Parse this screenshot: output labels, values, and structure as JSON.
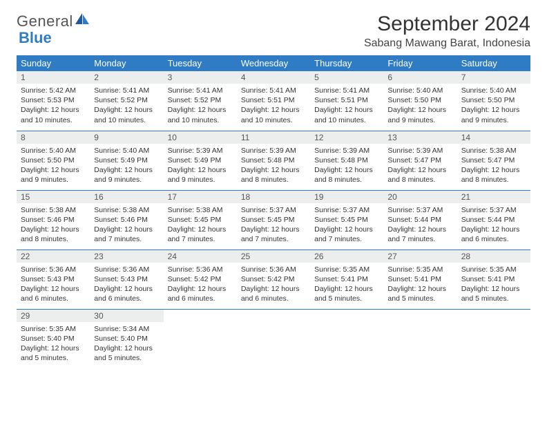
{
  "logo": {
    "text1": "General",
    "text2": "Blue"
  },
  "title": "September 2024",
  "location": "Sabang Mawang Barat, Indonesia",
  "colors": {
    "header_bg": "#2f7cc4",
    "header_text": "#ffffff",
    "daynum_bg": "#eceded",
    "border": "#2f7cc4",
    "page_bg": "#ffffff"
  },
  "weekdays": [
    "Sunday",
    "Monday",
    "Tuesday",
    "Wednesday",
    "Thursday",
    "Friday",
    "Saturday"
  ],
  "weeks": [
    [
      {
        "n": "1",
        "sr": "5:42 AM",
        "ss": "5:53 PM",
        "dl": "12 hours and 10 minutes."
      },
      {
        "n": "2",
        "sr": "5:41 AM",
        "ss": "5:52 PM",
        "dl": "12 hours and 10 minutes."
      },
      {
        "n": "3",
        "sr": "5:41 AM",
        "ss": "5:52 PM",
        "dl": "12 hours and 10 minutes."
      },
      {
        "n": "4",
        "sr": "5:41 AM",
        "ss": "5:51 PM",
        "dl": "12 hours and 10 minutes."
      },
      {
        "n": "5",
        "sr": "5:41 AM",
        "ss": "5:51 PM",
        "dl": "12 hours and 10 minutes."
      },
      {
        "n": "6",
        "sr": "5:40 AM",
        "ss": "5:50 PM",
        "dl": "12 hours and 9 minutes."
      },
      {
        "n": "7",
        "sr": "5:40 AM",
        "ss": "5:50 PM",
        "dl": "12 hours and 9 minutes."
      }
    ],
    [
      {
        "n": "8",
        "sr": "5:40 AM",
        "ss": "5:50 PM",
        "dl": "12 hours and 9 minutes."
      },
      {
        "n": "9",
        "sr": "5:40 AM",
        "ss": "5:49 PM",
        "dl": "12 hours and 9 minutes."
      },
      {
        "n": "10",
        "sr": "5:39 AM",
        "ss": "5:49 PM",
        "dl": "12 hours and 9 minutes."
      },
      {
        "n": "11",
        "sr": "5:39 AM",
        "ss": "5:48 PM",
        "dl": "12 hours and 8 minutes."
      },
      {
        "n": "12",
        "sr": "5:39 AM",
        "ss": "5:48 PM",
        "dl": "12 hours and 8 minutes."
      },
      {
        "n": "13",
        "sr": "5:39 AM",
        "ss": "5:47 PM",
        "dl": "12 hours and 8 minutes."
      },
      {
        "n": "14",
        "sr": "5:38 AM",
        "ss": "5:47 PM",
        "dl": "12 hours and 8 minutes."
      }
    ],
    [
      {
        "n": "15",
        "sr": "5:38 AM",
        "ss": "5:46 PM",
        "dl": "12 hours and 8 minutes."
      },
      {
        "n": "16",
        "sr": "5:38 AM",
        "ss": "5:46 PM",
        "dl": "12 hours and 7 minutes."
      },
      {
        "n": "17",
        "sr": "5:38 AM",
        "ss": "5:45 PM",
        "dl": "12 hours and 7 minutes."
      },
      {
        "n": "18",
        "sr": "5:37 AM",
        "ss": "5:45 PM",
        "dl": "12 hours and 7 minutes."
      },
      {
        "n": "19",
        "sr": "5:37 AM",
        "ss": "5:45 PM",
        "dl": "12 hours and 7 minutes."
      },
      {
        "n": "20",
        "sr": "5:37 AM",
        "ss": "5:44 PM",
        "dl": "12 hours and 7 minutes."
      },
      {
        "n": "21",
        "sr": "5:37 AM",
        "ss": "5:44 PM",
        "dl": "12 hours and 6 minutes."
      }
    ],
    [
      {
        "n": "22",
        "sr": "5:36 AM",
        "ss": "5:43 PM",
        "dl": "12 hours and 6 minutes."
      },
      {
        "n": "23",
        "sr": "5:36 AM",
        "ss": "5:43 PM",
        "dl": "12 hours and 6 minutes."
      },
      {
        "n": "24",
        "sr": "5:36 AM",
        "ss": "5:42 PM",
        "dl": "12 hours and 6 minutes."
      },
      {
        "n": "25",
        "sr": "5:36 AM",
        "ss": "5:42 PM",
        "dl": "12 hours and 6 minutes."
      },
      {
        "n": "26",
        "sr": "5:35 AM",
        "ss": "5:41 PM",
        "dl": "12 hours and 5 minutes."
      },
      {
        "n": "27",
        "sr": "5:35 AM",
        "ss": "5:41 PM",
        "dl": "12 hours and 5 minutes."
      },
      {
        "n": "28",
        "sr": "5:35 AM",
        "ss": "5:41 PM",
        "dl": "12 hours and 5 minutes."
      }
    ],
    [
      {
        "n": "29",
        "sr": "5:35 AM",
        "ss": "5:40 PM",
        "dl": "12 hours and 5 minutes."
      },
      {
        "n": "30",
        "sr": "5:34 AM",
        "ss": "5:40 PM",
        "dl": "12 hours and 5 minutes."
      },
      null,
      null,
      null,
      null,
      null
    ]
  ],
  "labels": {
    "sunrise": "Sunrise:",
    "sunset": "Sunset:",
    "daylight": "Daylight:"
  }
}
